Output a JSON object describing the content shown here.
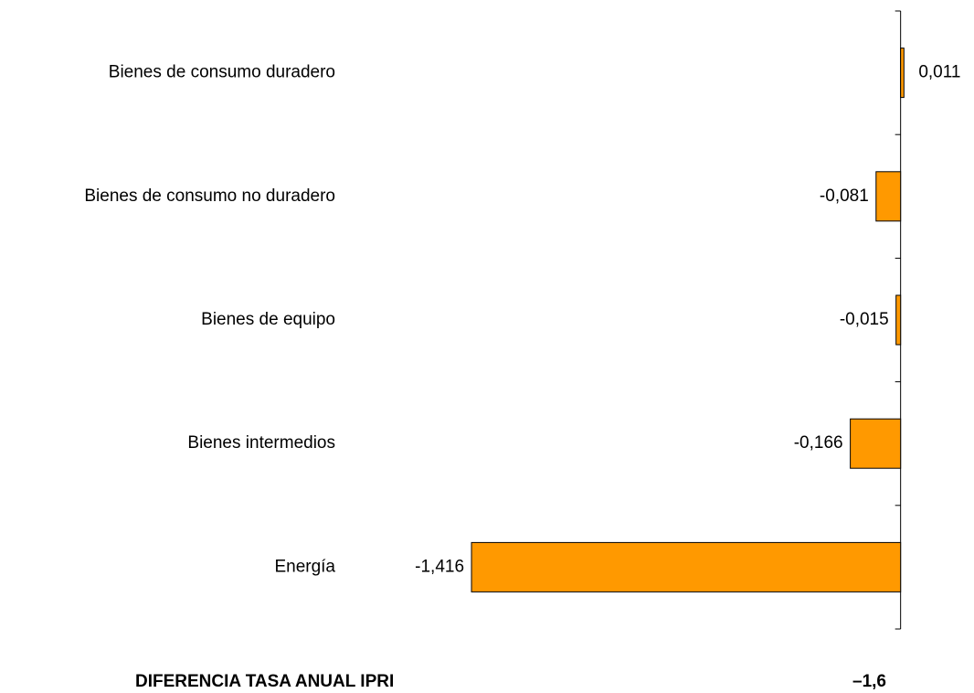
{
  "chart_data": {
    "type": "bar",
    "orientation": "horizontal",
    "categories": [
      "Bienes de consumo duradero",
      "Bienes de consumo no duradero",
      "Bienes de equipo",
      "Bienes intermedios",
      "Energía"
    ],
    "values": [
      0.011,
      -0.081,
      -0.015,
      -0.166,
      -1.416
    ],
    "value_labels": [
      "0,011",
      "-0,081",
      "-0,015",
      "-0,166",
      "-1,416"
    ],
    "color": "#ff9900",
    "xlim": [
      -1.6,
      0.2
    ],
    "footer": {
      "label": "DIFERENCIA TASA ANUAL IPRI",
      "value_label": "–1,6"
    }
  }
}
